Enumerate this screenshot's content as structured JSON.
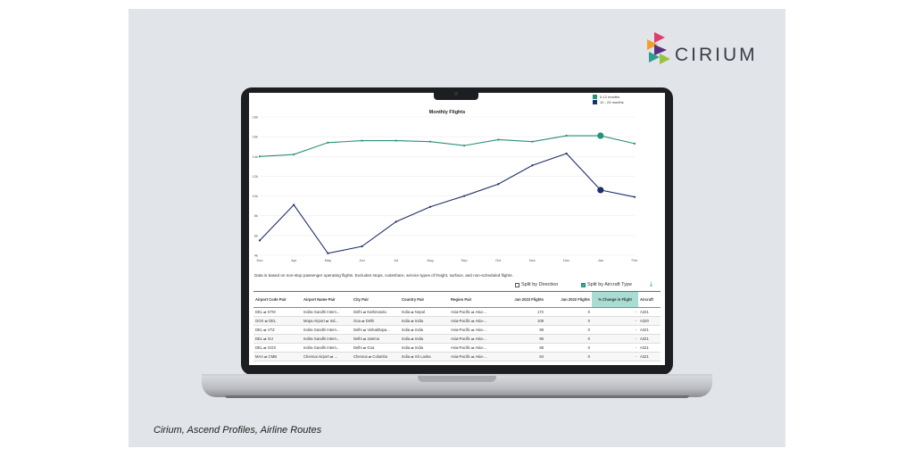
{
  "brand": {
    "name": "CIRIUM"
  },
  "caption": "Cirium, Ascend Profiles, Airline Routes",
  "chart_data": {
    "type": "line",
    "title": "Monthly Flights",
    "categories": [
      "Dec",
      "Apr",
      "May",
      "Jun",
      "Jul",
      "Aug",
      "Sep",
      "Oct",
      "Nov",
      "Dec",
      "Jan",
      "Feb"
    ],
    "y_ticks": [
      "4k",
      "6k",
      "8k",
      "10k",
      "12k",
      "14k",
      "16k",
      "18k"
    ],
    "ylim": [
      4,
      18
    ],
    "series": [
      {
        "name": "0-12 months",
        "color": "#2a8f7b",
        "values": [
          14.0,
          14.2,
          15.4,
          15.6,
          15.6,
          15.5,
          15.1,
          15.7,
          15.5,
          16.1,
          16.1,
          15.3
        ]
      },
      {
        "name": "12 - 24 months",
        "color": "#1f2f6b",
        "values": [
          5.5,
          9.1,
          4.2,
          4.9,
          7.4,
          8.9,
          10.0,
          11.2,
          13.1,
          14.3,
          10.6,
          9.9
        ]
      }
    ],
    "highlight_index": 10
  },
  "note": "Data is based on non-stop passenger operating flights. Excludes stops, codeshare, service types of freight, surface, and non-scheduled flights.",
  "controls": {
    "split_direction": "Split by Direction",
    "split_aircraft": "Split by Aircraft Type",
    "download_icon": "download-icon"
  },
  "table": {
    "headers": [
      "Airport Code Pair",
      "Airport Name Pair",
      "City Pair",
      "Country Pair",
      "Region Pair",
      "Jan 2023 Flights",
      "Jan 2022 Flights",
      "% Change in Flight",
      "Aircraft"
    ],
    "rows": [
      [
        "DEL ⇄ KTM",
        "Indira Gandhi Intern...",
        "Delhi ⇄ Kathmandu",
        "India ⇄ Nepal",
        "Asia-Pacific ⇄ Asia-...",
        "172",
        "0",
        "-",
        "A321"
      ],
      [
        "GOX ⇄ DEL",
        "Mopa Airport ⇄ Ind...",
        "Goa ⇄ Delhi",
        "India ⇄ India",
        "Asia-Pacific ⇄ Asia-...",
        "109",
        "0",
        "-",
        "A320"
      ],
      [
        "DEL ⇄ VTZ",
        "Indira Gandhi Intern...",
        "Delhi ⇄ Vishakhapa...",
        "India ⇄ India",
        "Asia-Pacific ⇄ Asia-...",
        "98",
        "0",
        "-",
        "A321"
      ],
      [
        "DEL ⇄ IXJ",
        "Indira Gandhi Intern...",
        "Delhi ⇄ Jammu",
        "India ⇄ India",
        "Asia-Pacific ⇄ Asia-...",
        "96",
        "0",
        "-",
        "A321"
      ],
      [
        "DEL ⇄ GOX",
        "Indira Gandhi Intern...",
        "Delhi ⇄ Goa",
        "India ⇄ India",
        "Asia-Pacific ⇄ Asia-...",
        "88",
        "0",
        "-",
        "A321"
      ],
      [
        "MAA ⇄ CMB",
        "Chennai Airport ⇄ ...",
        "Chennai ⇄ Colombo",
        "India ⇄ Sri Lanka",
        "Asia-Pacific ⇄ Asia-...",
        "84",
        "0",
        "-",
        "A321"
      ]
    ]
  }
}
